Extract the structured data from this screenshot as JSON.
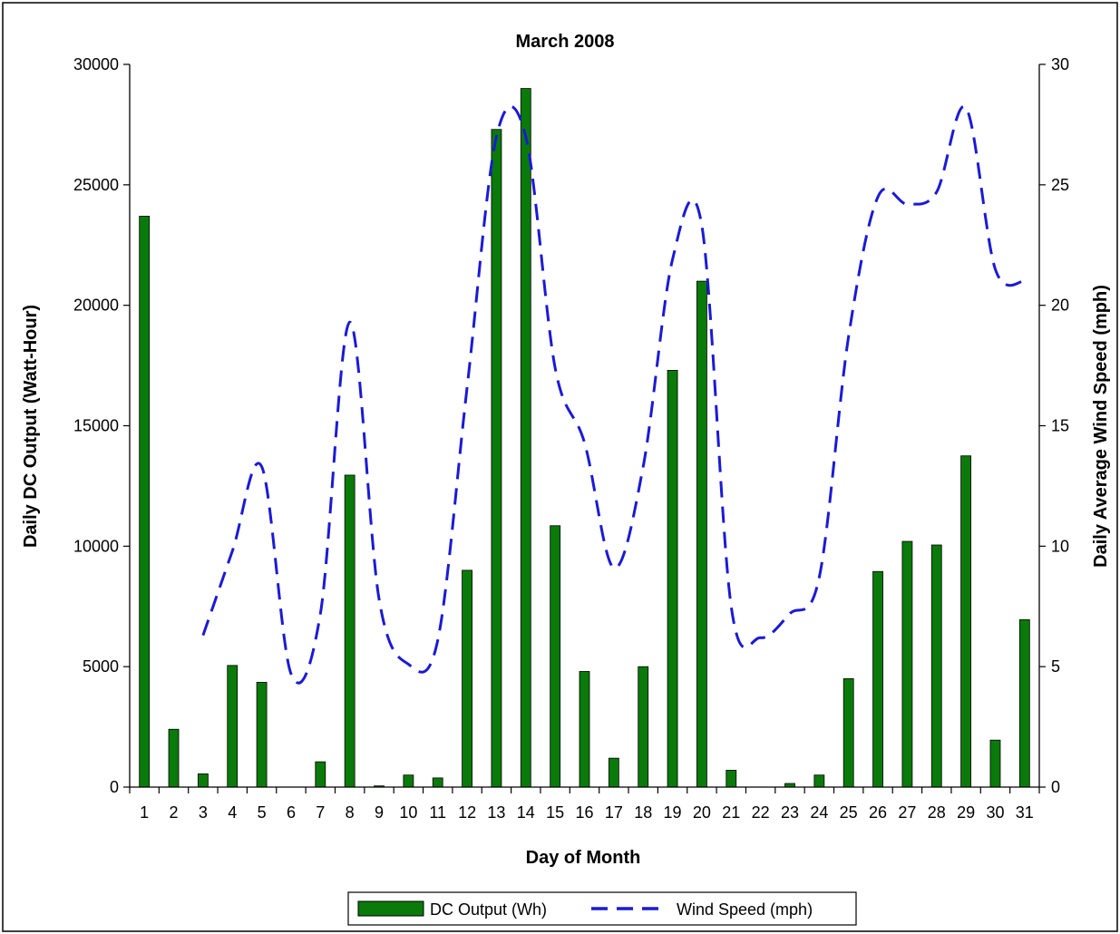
{
  "chart_data": {
    "type": "bar",
    "title": "March 2008",
    "xlabel": "Day of Month",
    "ylabel": "Daily DC Output (Watt-Hour)",
    "y2label": "Daily Average Wind Speed (mph)",
    "categories": [
      "1",
      "2",
      "3",
      "4",
      "5",
      "6",
      "7",
      "8",
      "9",
      "10",
      "11",
      "12",
      "13",
      "14",
      "15",
      "16",
      "17",
      "18",
      "19",
      "20",
      "21",
      "22",
      "23",
      "24",
      "25",
      "26",
      "27",
      "28",
      "29",
      "30",
      "31"
    ],
    "ylim": [
      0,
      30000
    ],
    "yticks": [
      0,
      5000,
      10000,
      15000,
      20000,
      25000,
      30000
    ],
    "y2lim": [
      0,
      30
    ],
    "y2ticks": [
      0,
      5,
      10,
      15,
      20,
      25,
      30
    ],
    "grid": false,
    "legend_position": "bottom",
    "series": [
      {
        "name": "DC Output (Wh)",
        "type": "bar",
        "axis": "left",
        "color": "#0a7a0a",
        "values": [
          23700,
          2400,
          550,
          5050,
          4350,
          0,
          1050,
          12950,
          50,
          500,
          380,
          9000,
          27300,
          29000,
          10850,
          4800,
          1200,
          5000,
          17300,
          21000,
          700,
          0,
          150,
          500,
          4500,
          8950,
          10200,
          10050,
          13750,
          1950,
          6950
        ]
      },
      {
        "name": "Wind Speed (mph)",
        "type": "line",
        "axis": "right",
        "color": "#1a1ad6",
        "values": [
          null,
          null,
          6.3,
          9.8,
          13.3,
          4.7,
          7.2,
          19.3,
          7.8,
          5.1,
          6.1,
          16.6,
          27.0,
          27.0,
          17.4,
          14.3,
          9.1,
          13.3,
          21.9,
          23.3,
          7.5,
          6.2,
          7.2,
          8.7,
          18.7,
          24.5,
          24.2,
          24.7,
          28.2,
          21.5,
          21.0
        ]
      }
    ]
  }
}
